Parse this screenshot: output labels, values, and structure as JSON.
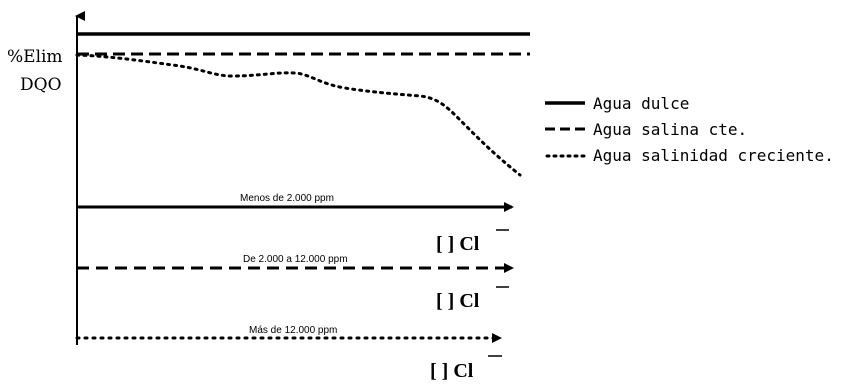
{
  "y_axis_label": {
    "line1": "%Elim",
    "line2": "DQO"
  },
  "legend": [
    {
      "style": "solid",
      "label": "Agua dulce"
    },
    {
      "style": "dashed",
      "label": "Agua salina cte."
    },
    {
      "style": "dotted",
      "label": "Agua salinidad creciente."
    }
  ],
  "concentration_axes": [
    {
      "style": "solid",
      "range_label": "Menos de 2.000 ppm",
      "axis_label": "[ ] Cl"
    },
    {
      "style": "dashed",
      "range_label": "De 2.000 a 12.000 ppm",
      "axis_label": "[ ] Cl"
    },
    {
      "style": "dotted",
      "range_label": "Más de 12.000 ppm",
      "axis_label": "[ ] Cl"
    }
  ],
  "colors": {
    "ink": "#000000",
    "background": "#ffffff"
  }
}
